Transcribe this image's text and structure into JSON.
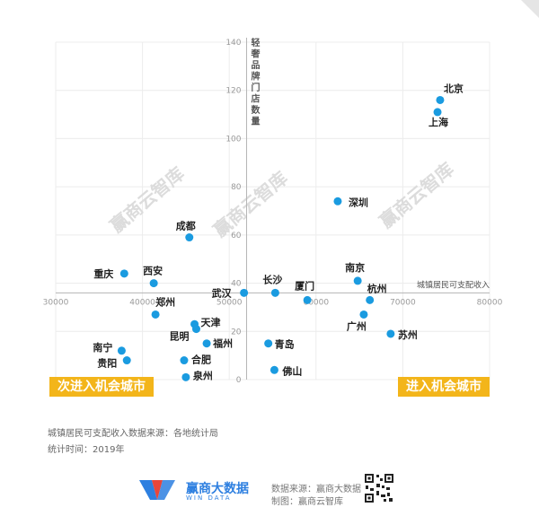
{
  "chart_data": {
    "type": "scatter",
    "title": "",
    "xlabel": "城镇居民可支配收入",
    "ylabel": "轻奢品牌门店数量",
    "xlim": [
      30000,
      80000
    ],
    "ylim": [
      0,
      140
    ],
    "x_ticks": [
      "30000",
      "40000",
      "50000",
      "60000",
      "70000",
      "80000"
    ],
    "y_ticks": [
      "0",
      "20",
      "40",
      "60",
      "80",
      "100",
      "120",
      "140"
    ],
    "crossing": {
      "x": 52000,
      "y": 36
    },
    "grid": true,
    "point_color": "#1a9be0",
    "points": [
      {
        "name": "北京",
        "x": 74300,
        "y": 116
      },
      {
        "name": "上海",
        "x": 74000,
        "y": 111
      },
      {
        "name": "深圳",
        "x": 62500,
        "y": 74
      },
      {
        "name": "成都",
        "x": 45400,
        "y": 59
      },
      {
        "name": "重庆",
        "x": 37900,
        "y": 44
      },
      {
        "name": "西安",
        "x": 41300,
        "y": 40
      },
      {
        "name": "长沙",
        "x": 55300,
        "y": 36
      },
      {
        "name": "武汉",
        "x": 51700,
        "y": 36
      },
      {
        "name": "厦门",
        "x": 59000,
        "y": 33
      },
      {
        "name": "南京",
        "x": 64800,
        "y": 41
      },
      {
        "name": "杭州",
        "x": 66200,
        "y": 33
      },
      {
        "name": "广州",
        "x": 65500,
        "y": 27
      },
      {
        "name": "苏州",
        "x": 68600,
        "y": 19
      },
      {
        "name": "郑州",
        "x": 41500,
        "y": 27
      },
      {
        "name": "天津",
        "x": 46000,
        "y": 23
      },
      {
        "name": "昆明",
        "x": 46200,
        "y": 21
      },
      {
        "name": "福州",
        "x": 47400,
        "y": 15
      },
      {
        "name": "青岛",
        "x": 54500,
        "y": 15
      },
      {
        "name": "南宁",
        "x": 37600,
        "y": 12
      },
      {
        "name": "贵阳",
        "x": 38200,
        "y": 8
      },
      {
        "name": "合肥",
        "x": 44800,
        "y": 8
      },
      {
        "name": "佛山",
        "x": 55200,
        "y": 4
      },
      {
        "name": "泉州",
        "x": 45000,
        "y": 1
      }
    ]
  },
  "watermark": "赢商云智库",
  "banners": {
    "left": "次进入机会城市",
    "right": "进入机会城市"
  },
  "notes": {
    "source": "城镇居民可支配收入数据来源：各地统计局",
    "time": "统计时间：2019年"
  },
  "footer": {
    "logo_cn": "赢商大数据",
    "logo_en": "WIN DATA",
    "data_source": "数据来源：赢商大数据",
    "made_by": "制图：赢商云智库"
  },
  "colors": {
    "accent": "#f3b51a",
    "brand": "#2d7fe0"
  }
}
